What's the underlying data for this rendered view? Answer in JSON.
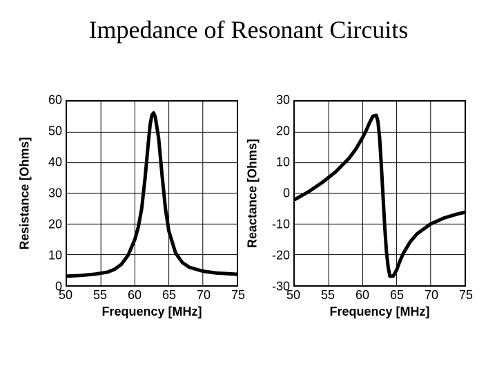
{
  "title": "Impedance of Resonant Circuits",
  "background_color": "#ffffff",
  "text_color": "#000000",
  "title_fontsize": 36,
  "axis_label_fontsize": 18,
  "tick_fontsize": 18,
  "line_width": 5,
  "grid_color": "#000000",
  "left_chart": {
    "type": "line",
    "ylabel": "Resistance [Ohms]",
    "xlabel": "Frequency [MHz]",
    "xlim": [
      50,
      75
    ],
    "ylim": [
      0,
      60
    ],
    "xtick_step": 5,
    "ytick_step": 10,
    "xticks": [
      50,
      55,
      60,
      65,
      70,
      75
    ],
    "yticks": [
      0,
      10,
      20,
      30,
      40,
      50,
      60
    ],
    "curve_color": "#000000",
    "data": [
      [
        50,
        3.0
      ],
      [
        52,
        3.2
      ],
      [
        54,
        3.6
      ],
      [
        56,
        4.3
      ],
      [
        57,
        5.2
      ],
      [
        58,
        6.8
      ],
      [
        59,
        9.8
      ],
      [
        60,
        15.0
      ],
      [
        60.5,
        19.0
      ],
      [
        61,
        25.0
      ],
      [
        61.5,
        35.0
      ],
      [
        62,
        47.0
      ],
      [
        62.25,
        52.5
      ],
      [
        62.5,
        55.5
      ],
      [
        62.75,
        56.3
      ],
      [
        63,
        55.0
      ],
      [
        63.5,
        48.0
      ],
      [
        64,
        36.0
      ],
      [
        64.5,
        25.0
      ],
      [
        65,
        17.7
      ],
      [
        66,
        10.5
      ],
      [
        67,
        7.4
      ],
      [
        68,
        5.9
      ],
      [
        70,
        4.6
      ],
      [
        72,
        4.0
      ],
      [
        75,
        3.6
      ]
    ]
  },
  "right_chart": {
    "type": "line",
    "ylabel": "Reactance [Ohms]",
    "xlabel": "Frequency [MHz]",
    "xlim": [
      50,
      75
    ],
    "ylim": [
      -30,
      30
    ],
    "xtick_step": 5,
    "ytick_step": 10,
    "xticks": [
      50,
      55,
      60,
      65,
      70,
      75
    ],
    "yticks": [
      -30,
      -20,
      -10,
      0,
      10,
      20,
      30
    ],
    "curve_color": "#000000",
    "data": [
      [
        50,
        -2.0
      ],
      [
        52,
        0.5
      ],
      [
        54,
        3.5
      ],
      [
        56,
        7.0
      ],
      [
        58,
        11.5
      ],
      [
        59,
        14.5
      ],
      [
        60,
        18.3
      ],
      [
        60.5,
        20.5
      ],
      [
        61,
        23.0
      ],
      [
        61.5,
        25.2
      ],
      [
        62,
        25.5
      ],
      [
        62.25,
        23.5
      ],
      [
        62.5,
        18.0
      ],
      [
        62.75,
        9.0
      ],
      [
        63,
        -1.0
      ],
      [
        63.25,
        -11.0
      ],
      [
        63.5,
        -19.0
      ],
      [
        63.75,
        -24.0
      ],
      [
        64,
        -27.0
      ],
      [
        64.5,
        -27.0
      ],
      [
        65,
        -25.0
      ],
      [
        65.5,
        -22.0
      ],
      [
        66,
        -19.5
      ],
      [
        67,
        -15.8
      ],
      [
        68,
        -13.2
      ],
      [
        70,
        -10.0
      ],
      [
        72,
        -8.0
      ],
      [
        74,
        -6.7
      ],
      [
        75,
        -6.2
      ]
    ]
  }
}
